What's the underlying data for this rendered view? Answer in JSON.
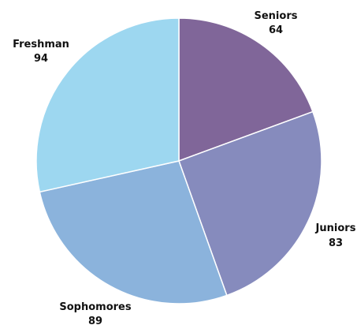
{
  "chart_data": {
    "type": "pie",
    "categories": [
      "Seniors",
      "Juniors",
      "Sophomores",
      "Freshman"
    ],
    "values": [
      64,
      83,
      89,
      94
    ],
    "colors": [
      "#806699",
      "#868bbd",
      "#8bb3dc",
      "#9dd7f0"
    ],
    "start_angle_deg": 0,
    "direction": "clockwise",
    "labels": [
      {
        "name": "Seniors",
        "value": "64"
      },
      {
        "name": "Juniors",
        "value": "83"
      },
      {
        "name": "Sophomores",
        "value": "89"
      },
      {
        "name": "Freshman",
        "value": "94"
      }
    ]
  }
}
